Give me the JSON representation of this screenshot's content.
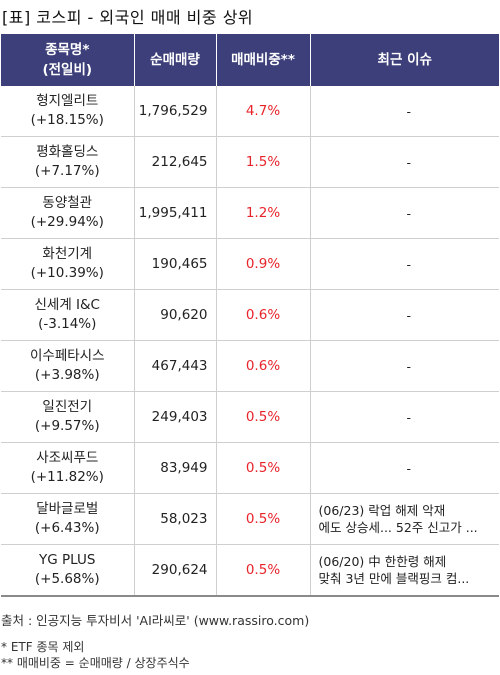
{
  "title": "[표] 코스피 - 외국인 매매 비중 상위",
  "headers": {
    "name_line1": "종목명*",
    "name_line2": "(전일비)",
    "volume": "순매매량",
    "ratio": "매매비중**",
    "issue": "최근 이슈"
  },
  "rows": [
    {
      "name": "형지엘리트",
      "change": "(+18.15%)",
      "volume": "1,796,529",
      "ratio": "4.7%",
      "issue_line1": "-",
      "issue_line2": ""
    },
    {
      "name": "평화홀딩스",
      "change": "(+7.17%)",
      "volume": "212,645",
      "ratio": "1.5%",
      "issue_line1": "-",
      "issue_line2": ""
    },
    {
      "name": "동양철관",
      "change": "(+29.94%)",
      "volume": "1,995,411",
      "ratio": "1.2%",
      "issue_line1": "-",
      "issue_line2": ""
    },
    {
      "name": "화천기계",
      "change": "(+10.39%)",
      "volume": "190,465",
      "ratio": "0.9%",
      "issue_line1": "-",
      "issue_line2": ""
    },
    {
      "name": "신세계 I&C",
      "change": "(-3.14%)",
      "volume": "90,620",
      "ratio": "0.6%",
      "issue_line1": "-",
      "issue_line2": ""
    },
    {
      "name": "이수페타시스",
      "change": "(+3.98%)",
      "volume": "467,443",
      "ratio": "0.6%",
      "issue_line1": "-",
      "issue_line2": ""
    },
    {
      "name": "일진전기",
      "change": "(+9.57%)",
      "volume": "249,403",
      "ratio": "0.5%",
      "issue_line1": "-",
      "issue_line2": ""
    },
    {
      "name": "사조씨푸드",
      "change": "(+11.82%)",
      "volume": "83,949",
      "ratio": "0.5%",
      "issue_line1": "-",
      "issue_line2": ""
    },
    {
      "name": "달바글로벌",
      "change": "(+6.43%)",
      "volume": "58,023",
      "ratio": "0.5%",
      "issue_line1": "(06/23) 락업 해제 악재",
      "issue_line2": "에도 상승세... 52주 신고가 ..."
    },
    {
      "name": "YG PLUS",
      "change": "(+5.68%)",
      "volume": "290,624",
      "ratio": "0.5%",
      "issue_line1": "(06/20) 中 한한령 해제",
      "issue_line2": "맞춰 3년 만에 블랙핑크 컴..."
    }
  ],
  "source": "출처 : 인공지능 투자비서 'AI라씨로' (www.rassiro.com)",
  "note1": "* ETF 종목 제외",
  "note2": "** 매매비중 = 순매매량 / 상장주식수",
  "colors": {
    "header_bg": "#3d3f7a",
    "ratio_text": "#e8242b"
  }
}
